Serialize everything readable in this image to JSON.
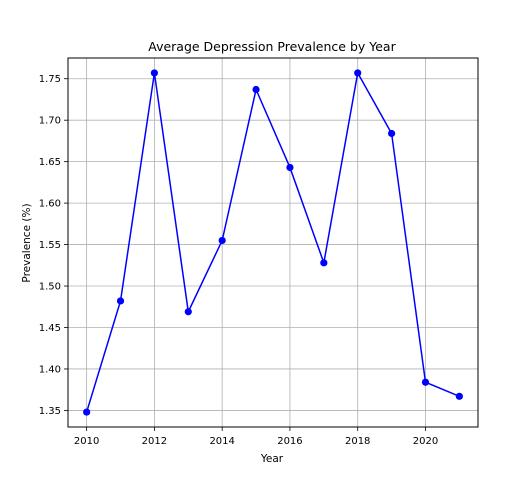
{
  "chart_data": {
    "type": "line",
    "title": "Average Depression Prevalence by Year",
    "xlabel": "Year",
    "ylabel": "Prevalence (%)",
    "x": [
      2010,
      2011,
      2012,
      2013,
      2014,
      2015,
      2016,
      2017,
      2018,
      2019,
      2020,
      2021
    ],
    "series": [
      {
        "values": [
          1.348,
          1.482,
          1.757,
          1.469,
          1.555,
          1.737,
          1.643,
          1.528,
          1.757,
          1.684,
          1.384,
          1.367
        ],
        "color": "#0000ff",
        "marker": "circle"
      }
    ],
    "xlim": [
      2009.45,
      2021.55
    ],
    "ylim": [
      1.33,
      1.775
    ],
    "xticks": [
      2010,
      2012,
      2014,
      2016,
      2018,
      2020
    ],
    "yticks": [
      1.35,
      1.4,
      1.45,
      1.5,
      1.55,
      1.6,
      1.65,
      1.7,
      1.75
    ],
    "ytick_labels": [
      "1.35",
      "1.40",
      "1.45",
      "1.50",
      "1.55",
      "1.60",
      "1.65",
      "1.70",
      "1.75"
    ],
    "grid": true
  }
}
